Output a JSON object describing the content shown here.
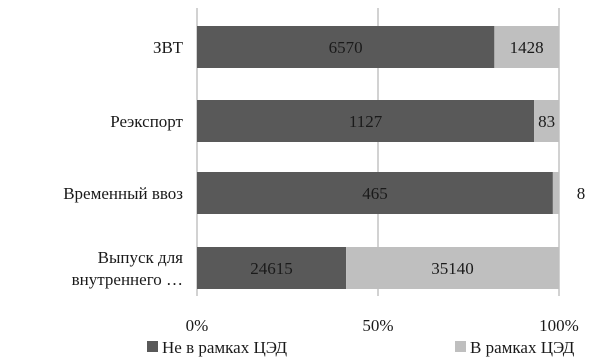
{
  "chart_data": {
    "type": "bar",
    "orientation": "horizontal",
    "stacking": "percent",
    "categories": [
      "ЗВТ",
      "Реэкспорт",
      "Временный ввоз",
      "Выпуск для внутреннего …"
    ],
    "series": [
      {
        "name": "Не в рамках ЦЭД",
        "values": [
          6570,
          1127,
          465,
          24615
        ],
        "color": "#595959"
      },
      {
        "name": "В рамках ЦЭД",
        "values": [
          1428,
          83,
          8,
          35140
        ],
        "color": "#bfbfbf"
      }
    ],
    "x_ticks": [
      "0%",
      "50%",
      "100%"
    ],
    "xlim": [
      0,
      100
    ],
    "grid": true,
    "legend": "bottom"
  }
}
